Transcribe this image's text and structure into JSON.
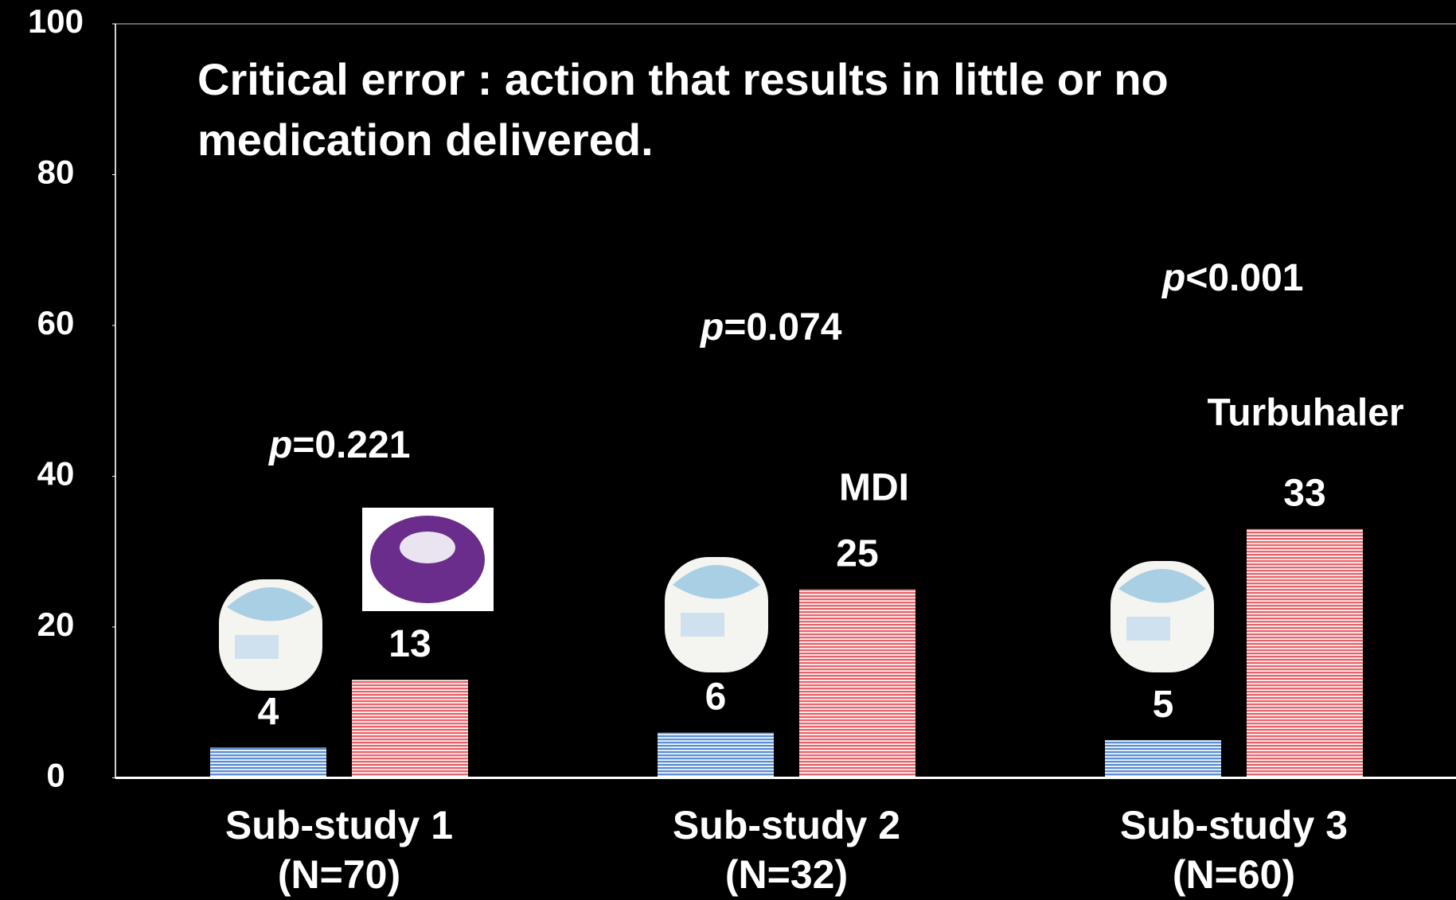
{
  "chart_data": {
    "type": "bar",
    "subtitle": "Critical error : action that results in little or no medication delivered.",
    "categories": [
      "Sub-study 1",
      "Sub-study 2",
      "Sub-study 3"
    ],
    "category_notes": [
      "(N=70)",
      "(N=32)",
      "(N=60)"
    ],
    "series": [
      {
        "color": "#5b8fd0",
        "values": [
          4,
          6,
          5
        ]
      },
      {
        "color": "#e8646c",
        "values": [
          13,
          25,
          33
        ]
      }
    ],
    "ylim": [
      0,
      100
    ],
    "yticks": [
      0,
      20,
      40,
      60,
      80,
      100
    ],
    "grid": false,
    "p_values": [
      {
        "symbol": "p",
        "text": "=0.221"
      },
      {
        "symbol": "p",
        "text": "=0.074"
      },
      {
        "symbol": "p",
        "text": "<0.001"
      }
    ],
    "device_labels": [
      "MDI",
      "Turbuhaler"
    ]
  }
}
